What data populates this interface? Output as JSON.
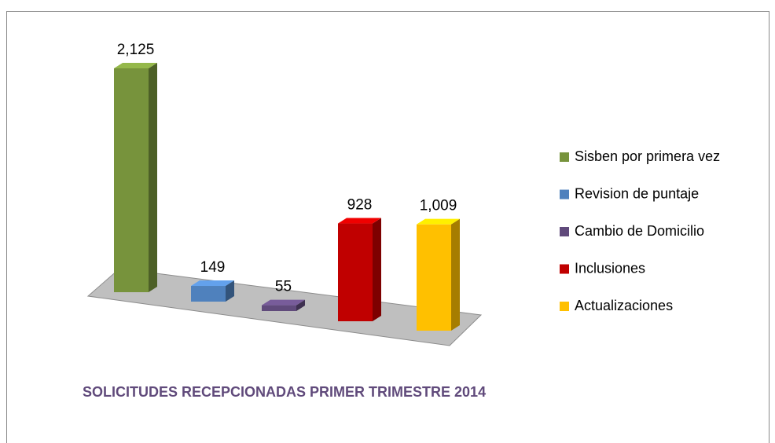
{
  "chart_data": {
    "type": "bar",
    "title": "SOLICITUDES RECEPCIONADAS PRIMER TRIMESTRE 2014",
    "series": [
      {
        "name": "Sisben por primera vez",
        "color": "#77933c",
        "values": [
          2125
        ],
        "value_labels": [
          "2,125"
        ]
      },
      {
        "name": "Revision de puntaje",
        "color": "#4f81bd",
        "values": [
          149
        ]
      },
      {
        "name": "Cambio de Domicilio",
        "color": "#604a7b",
        "values": [
          55
        ]
      },
      {
        "name": "Inclusiones",
        "color": "#c00000",
        "values": [
          928
        ]
      },
      {
        "name": "Actualizaciones",
        "color": "#ffc000",
        "values": [
          1009
        ],
        "value_labels": [
          "1,009"
        ]
      }
    ],
    "legend": "right"
  }
}
